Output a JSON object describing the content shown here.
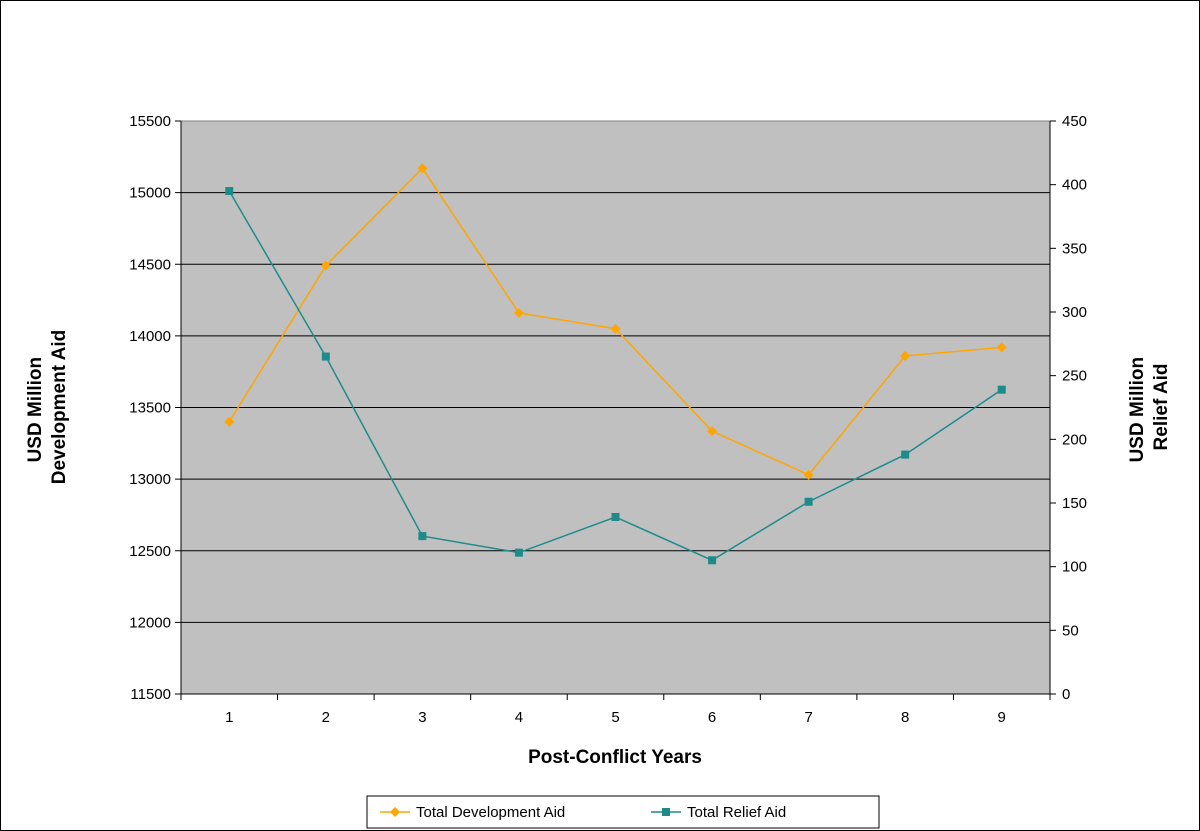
{
  "chart_data": {
    "type": "line",
    "categories": [
      "1",
      "2",
      "3",
      "4",
      "5",
      "6",
      "7",
      "8",
      "9"
    ],
    "xlabel": "Post-Conflict Years",
    "ylabel_left": [
      "USD Million",
      "Development Aid"
    ],
    "ylabel_right": [
      "USD Million",
      "Relief Aid"
    ],
    "ylim_left": [
      11500,
      15500
    ],
    "yticks_left": [
      11500,
      12000,
      12500,
      13000,
      13500,
      14000,
      14500,
      15000,
      15500
    ],
    "ylim_right": [
      0,
      450
    ],
    "yticks_right": [
      0,
      50,
      100,
      150,
      200,
      250,
      300,
      350,
      400,
      450
    ],
    "grid": true,
    "legend_position": "bottom",
    "series": [
      {
        "name": "Total Development Aid",
        "axis": "left",
        "marker": "diamond",
        "color": "#FFA500",
        "values": [
          13400,
          14490,
          15170,
          14160,
          14050,
          13335,
          13030,
          13860,
          13920
        ]
      },
      {
        "name": "Total Relief Aid",
        "axis": "right",
        "marker": "square",
        "color": "#1E8B8B",
        "values": [
          395,
          265,
          124,
          111,
          139,
          105,
          151,
          188,
          239
        ]
      }
    ],
    "plot_background": "#C0C0C0"
  }
}
